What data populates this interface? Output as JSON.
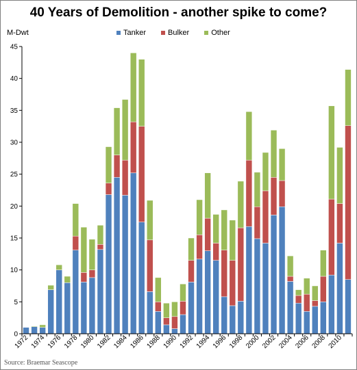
{
  "chart_data": {
    "type": "bar",
    "stacked": true,
    "title": "40 Years of Demolition - another spike to come?",
    "ylabel": "M-Dwt",
    "xlabel": "",
    "ylim": [
      0,
      45
    ],
    "yticks": [
      0,
      5,
      10,
      15,
      20,
      25,
      30,
      35,
      40,
      45
    ],
    "grid": false,
    "legend_position": "top",
    "source": "Source: Braemar Seascope",
    "categories": [
      "1972",
      "1973",
      "1974",
      "1975",
      "1976",
      "1977",
      "1978",
      "1979",
      "1980",
      "1981",
      "1982",
      "1983",
      "1984",
      "1985",
      "1986",
      "1987",
      "1988",
      "1989",
      "1990",
      "1991",
      "1992",
      "1993",
      "1994",
      "1995",
      "1996",
      "1997",
      "1998",
      "1999",
      "2000",
      "2001",
      "2002",
      "2003",
      "2004",
      "2005",
      "2006",
      "2007",
      "2008",
      "2009",
      "2010",
      "2011"
    ],
    "x_tick_labels": [
      "1972",
      "",
      "1974",
      "",
      "1976",
      "",
      "1978",
      "",
      "1980",
      "",
      "1982",
      "",
      "1984",
      "",
      "1986",
      "",
      "1988",
      "",
      "1990",
      "",
      "1992",
      "",
      "1994",
      "",
      "1996",
      "",
      "1998",
      "",
      "2000",
      "",
      "2002",
      "",
      "2004",
      "",
      "2006",
      "",
      "2008",
      "",
      "2010",
      ""
    ],
    "series": [
      {
        "name": "Tanker",
        "color": "#4f81bd",
        "values": [
          1.0,
          1.1,
          1.0,
          6.9,
          10.0,
          8.0,
          13.1,
          8.1,
          8.8,
          13.2,
          21.8,
          24.5,
          21.7,
          25.2,
          17.5,
          6.6,
          3.5,
          1.4,
          0.8,
          3.0,
          8.1,
          11.7,
          13.0,
          11.5,
          5.8,
          4.4,
          5.1,
          16.8,
          14.9,
          14.2,
          18.6,
          19.9,
          8.2,
          4.8,
          3.5,
          4.3,
          5.0,
          9.2,
          14.2,
          8.5
        ]
      },
      {
        "name": "Bulker",
        "color": "#c0504d",
        "values": [
          0.0,
          0.0,
          0.0,
          0.0,
          0.0,
          0.0,
          2.2,
          1.5,
          1.2,
          0.8,
          1.8,
          3.5,
          5.5,
          8.0,
          15.0,
          8.1,
          1.5,
          1.1,
          1.9,
          2.1,
          3.4,
          3.8,
          5.1,
          2.7,
          7.3,
          7.1,
          11.5,
          10.4,
          5.0,
          8.2,
          5.9,
          4.1,
          0.8,
          1.2,
          2.7,
          0.9,
          4.0,
          11.9,
          6.2,
          24.1
        ]
      },
      {
        "name": "Other",
        "color": "#9bbb59",
        "values": [
          0.0,
          0.1,
          0.4,
          0.7,
          0.8,
          1.0,
          5.1,
          7.1,
          4.8,
          3.0,
          5.7,
          7.4,
          9.5,
          10.8,
          10.5,
          6.2,
          3.8,
          2.3,
          2.3,
          2.7,
          3.5,
          5.5,
          7.1,
          4.5,
          6.3,
          6.3,
          7.3,
          7.6,
          5.4,
          6.0,
          7.4,
          5.0,
          3.2,
          0.9,
          2.5,
          2.3,
          4.1,
          14.6,
          8.8,
          8.8
        ]
      }
    ]
  }
}
